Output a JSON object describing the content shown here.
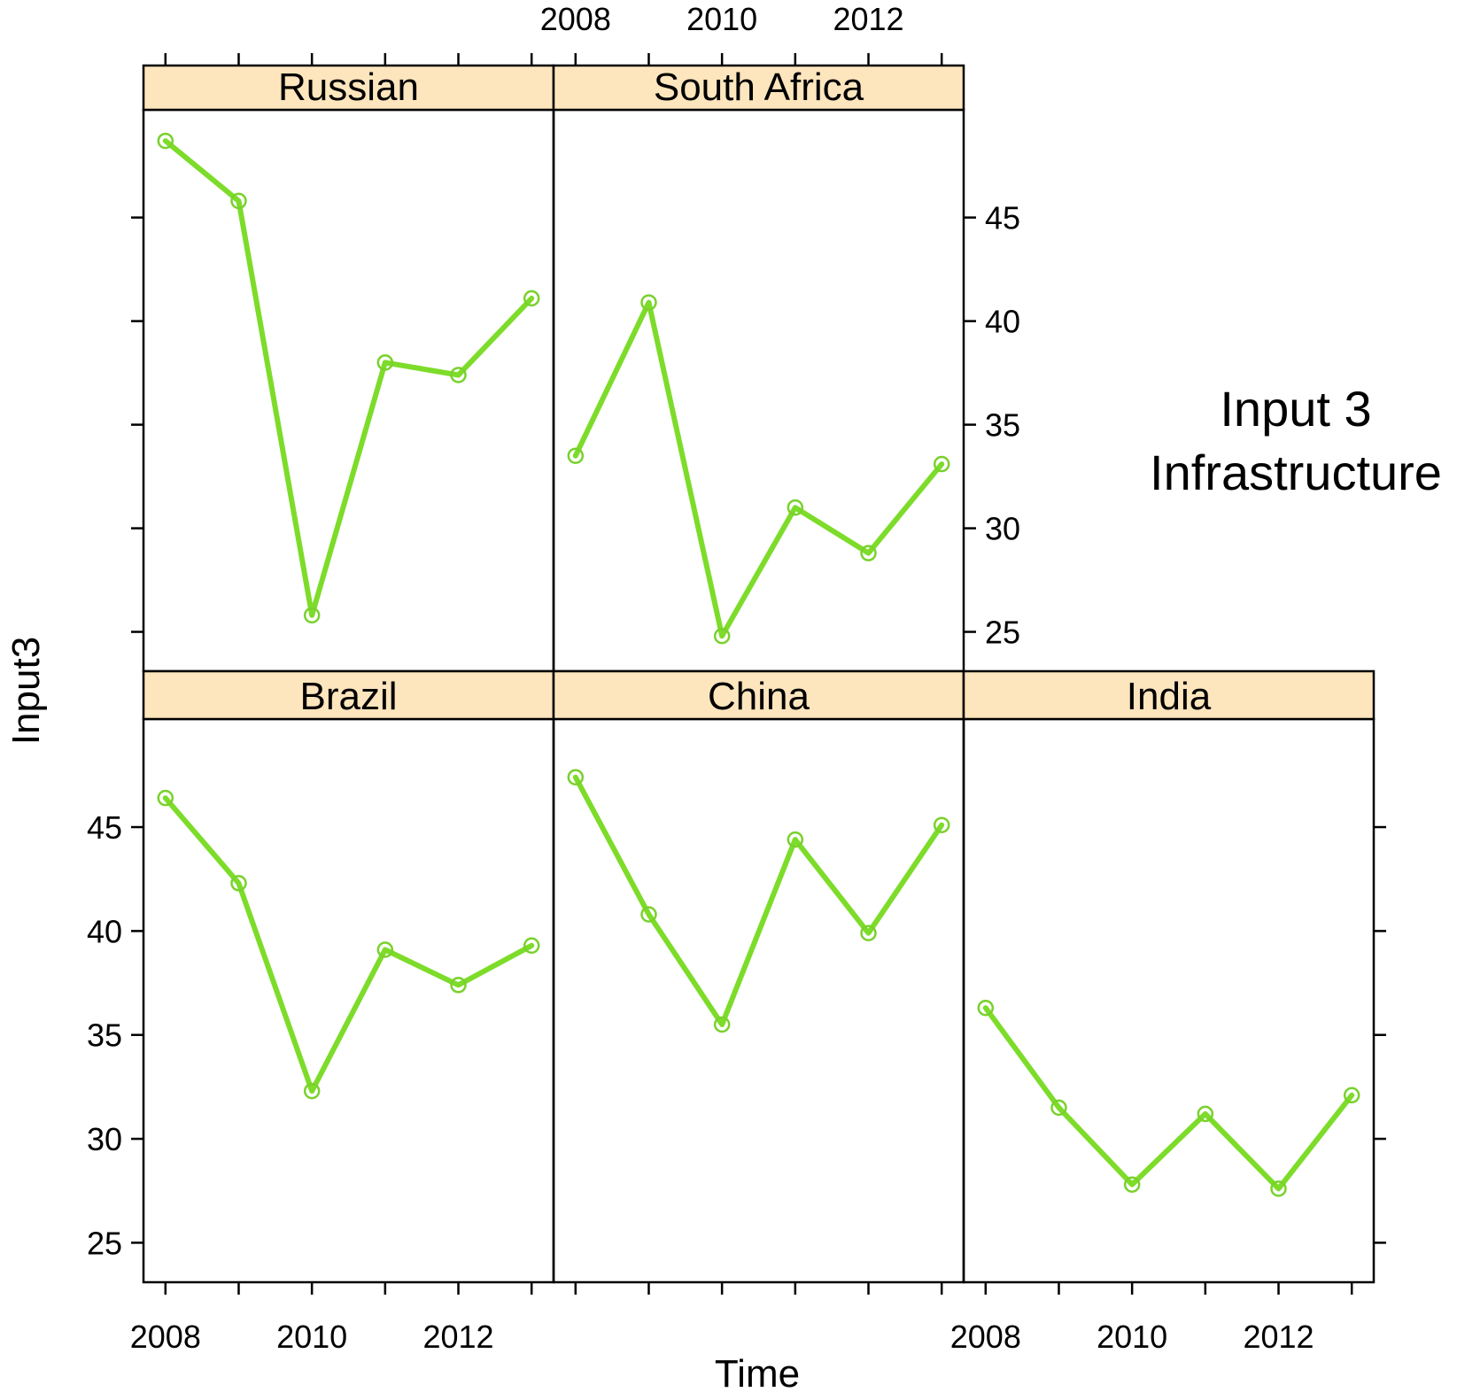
{
  "chart_data": {
    "type": "line",
    "layout": "trellis",
    "xlabel": "Time",
    "ylabel": "Input3",
    "annotation": [
      "Input 3",
      "Infrastructure"
    ],
    "x": [
      2008,
      2009,
      2010,
      2011,
      2012,
      2013
    ],
    "x_ticks": [
      2008,
      2010,
      2012
    ],
    "x_tick_labels": [
      "2008",
      "2010",
      "2012"
    ],
    "y_ticks": [
      25,
      30,
      35,
      40,
      45
    ],
    "y_tick_labels": [
      "25",
      "30",
      "35",
      "40",
      "45"
    ],
    "xlim": [
      2007.7,
      2013.3
    ],
    "ylim": [
      23.1,
      50.2
    ],
    "grid": false,
    "colors": {
      "line": "#7ddc2a",
      "point": "#79d12c",
      "strip": "#fde5bd",
      "frame": "#000000"
    },
    "series": [
      {
        "name": "Russian",
        "values": [
          48.7,
          45.8,
          25.8,
          38.0,
          37.4,
          41.1
        ]
      },
      {
        "name": "South Africa",
        "values": [
          33.5,
          40.9,
          24.8,
          31.0,
          28.8,
          33.1
        ]
      },
      {
        "name": "Brazil",
        "values": [
          46.4,
          42.3,
          32.3,
          39.1,
          37.4,
          39.3
        ]
      },
      {
        "name": "China",
        "values": [
          47.4,
          40.8,
          35.5,
          44.4,
          39.9,
          45.1
        ]
      },
      {
        "name": "India",
        "values": [
          36.3,
          31.5,
          27.8,
          31.2,
          27.6,
          32.1
        ]
      }
    ]
  }
}
